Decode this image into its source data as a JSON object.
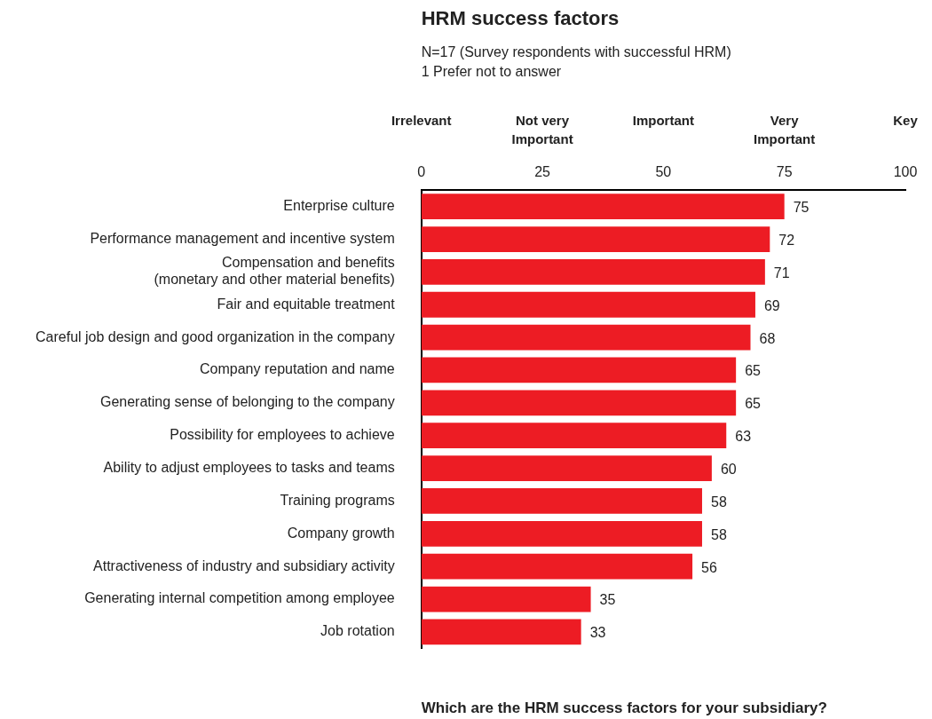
{
  "chart_data": {
    "type": "bar",
    "orientation": "horizontal",
    "title": "HRM success factors",
    "subtitle": "N=17 (Survey respondents with successful HRM)\n1 Prefer not to answer",
    "annotations": [
      "Which are the HRM success factors for your subsidiary?",
      "Irrelevant",
      "Not very Important",
      "Important",
      "Very Important",
      "Key"
    ],
    "categories": [
      "Enterprise culture",
      "Performance management and incentive system",
      "Compensation and benefits\n(monetary and other material benefits)",
      "Fair and equitable treatment",
      "Careful job design and good organization in the company",
      "Company reputation and name",
      "Generating sense of belonging to the company",
      "Possibility for employees to achieve",
      "Ability to adjust employees to tasks and teams",
      "Training programs",
      "Company growth",
      "Attractiveness of industry and subsidiary activity",
      "Generating internal competition among employee",
      "Job rotation"
    ],
    "values": [
      75,
      72,
      71,
      69,
      68,
      65,
      65,
      63,
      60,
      58,
      58,
      56,
      35,
      33
    ],
    "color": "#ed1c24",
    "data_labels": true,
    "grid": false,
    "legend": false,
    "xlim": [
      0,
      100
    ],
    "xticks": [
      0,
      25,
      50,
      75,
      100
    ]
  }
}
